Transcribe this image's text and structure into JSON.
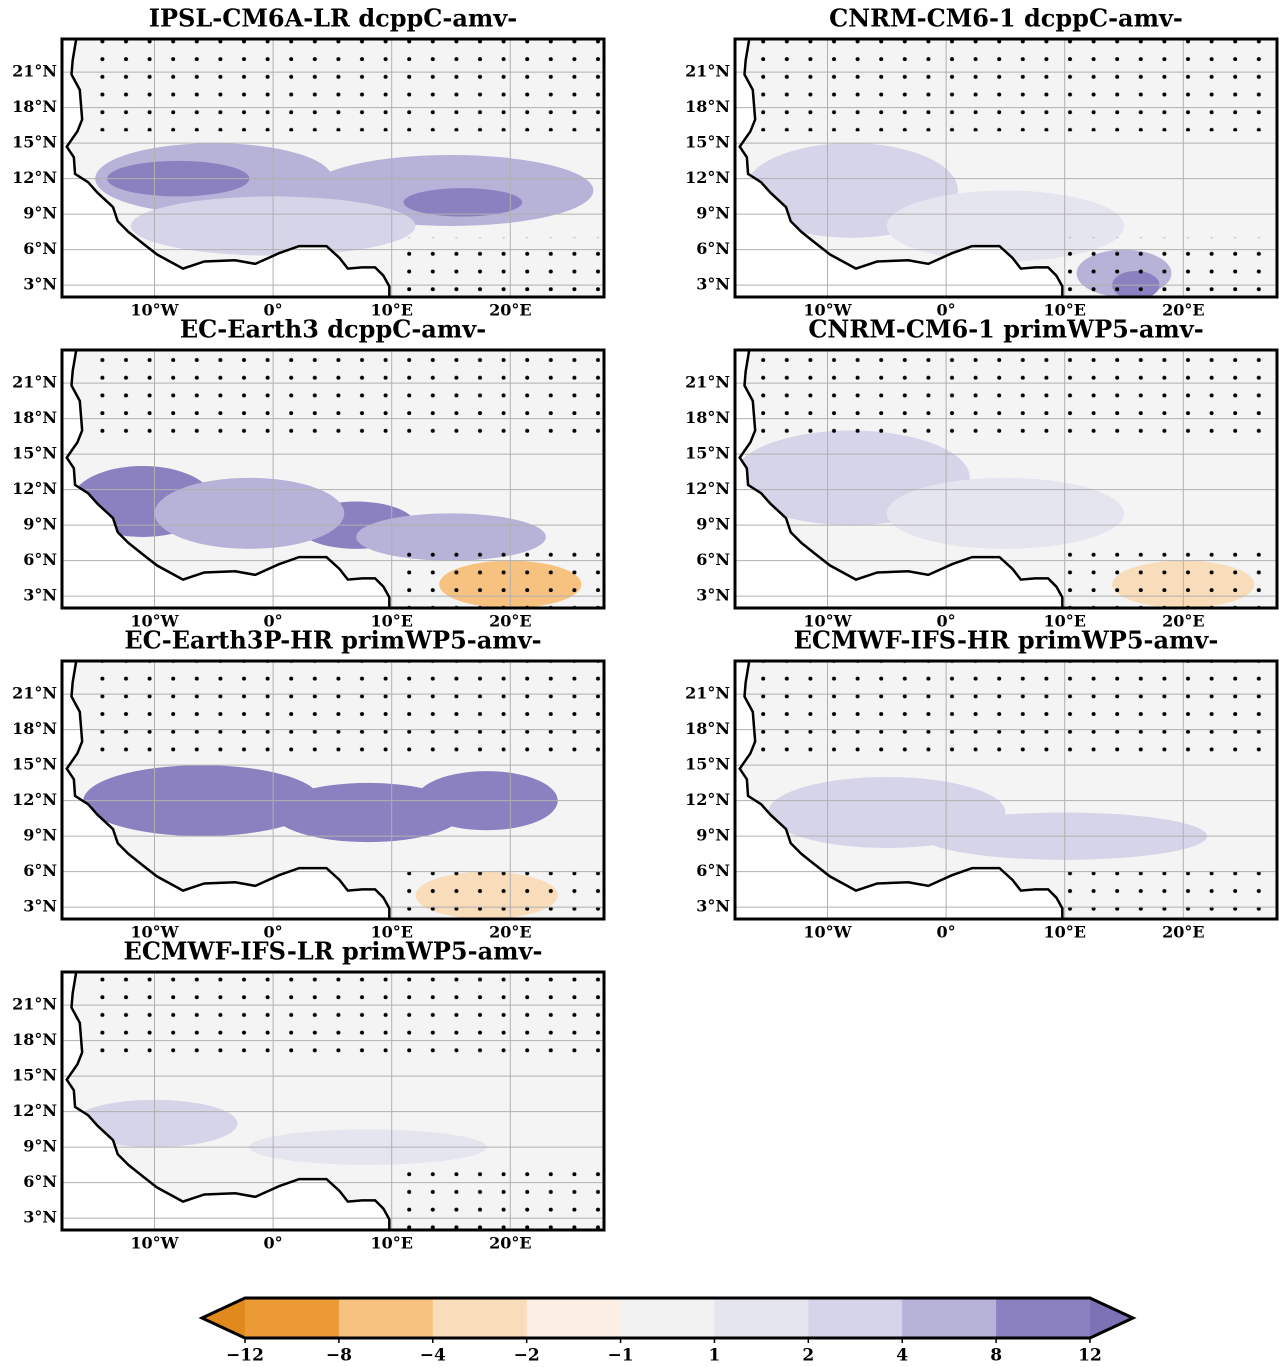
{
  "panels": [
    {
      "title": "IPSL-CM6A-LR dcppC-amv-"
    },
    {
      "title": "CNRM-CM6-1 dcppC-amv-"
    },
    {
      "title": "EC-Earth3 dcppC-amv-"
    },
    {
      "title": "CNRM-CM6-1 primWP5-amv-"
    },
    {
      "title": "EC-Earth3P-HR primWP5-amv-"
    },
    {
      "title": "ECMWF-IFS-HR primWP5-amv-"
    },
    {
      "title": "ECMWF-IFS-LR primWP5-amv-"
    }
  ],
  "lon_range": [
    -17.8,
    27.9
  ],
  "lat_range": [
    2,
    23.8
  ],
  "lat_ticks": [
    {
      "value": 21,
      "label": "21°N"
    },
    {
      "value": 18,
      "label": "18°N"
    },
    {
      "value": 15,
      "label": "15°N"
    },
    {
      "value": 12,
      "label": "12°N"
    },
    {
      "value": 9,
      "label": "9°N"
    },
    {
      "value": 6,
      "label": "6°N"
    },
    {
      "value": 3,
      "label": "3°N"
    }
  ],
  "lon_ticks": [
    {
      "value": -10,
      "label": "10°W"
    },
    {
      "value": 0,
      "label": "0°"
    },
    {
      "value": 10,
      "label": "10°E"
    },
    {
      "value": 20,
      "label": "20°E"
    }
  ],
  "colorbar": {
    "ticks": [
      {
        "value": -12,
        "label": "−12"
      },
      {
        "value": -8,
        "label": "−8"
      },
      {
        "value": -4,
        "label": "−4"
      },
      {
        "value": -2,
        "label": "−2"
      },
      {
        "value": -1,
        "label": "−1"
      },
      1,
      2,
      4,
      8,
      12
    ],
    "colors": [
      "#e08a1e",
      "#eb9a36",
      "#f7c27f",
      "#f9ddbb",
      "#fbeee2",
      "#f2f2f2",
      "#e5e5f0",
      "#d5d4e9",
      "#b6b2d8",
      "#8b81c0",
      "#7d72b6"
    ]
  }
}
